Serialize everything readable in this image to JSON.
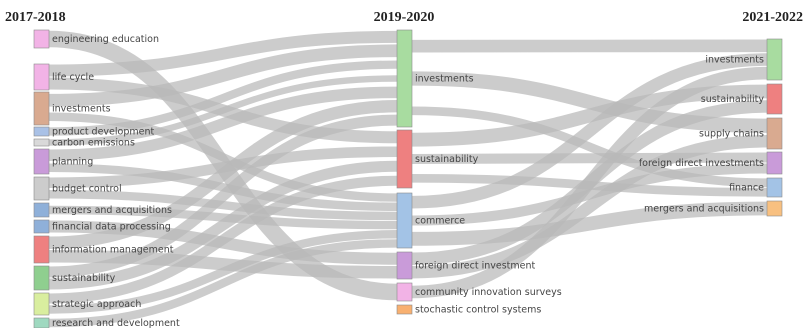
{
  "columns": [
    {
      "title": "2017-2018",
      "nodes": [
        {
          "label": "engineering education",
          "color": "#f2b3e6"
        },
        {
          "label": "life cycle",
          "color": "#f2b3e6"
        },
        {
          "label": "investments",
          "color": "#d9aa90"
        },
        {
          "label": "product development",
          "color": "#a9c1e6"
        },
        {
          "label": "carbon emissions",
          "color": "#d9d9d9"
        },
        {
          "label": "planning",
          "color": "#c99bd9"
        },
        {
          "label": "budget control",
          "color": "#cccccc"
        },
        {
          "label": "mergers and acquisitions",
          "color": "#8fb0d9"
        },
        {
          "label": "financial data processing",
          "color": "#8fb0d9"
        },
        {
          "label": "information management",
          "color": "#ee8080"
        },
        {
          "label": "sustainability",
          "color": "#8fcf8f"
        },
        {
          "label": "strategic approach",
          "color": "#d9ee9f"
        },
        {
          "label": "research and development",
          "color": "#9fd9c0"
        }
      ]
    },
    {
      "title": "2019-2020",
      "nodes": [
        {
          "label": "investments",
          "color": "#a8dca0"
        },
        {
          "label": "sustainability",
          "color": "#ee8080"
        },
        {
          "label": "commerce",
          "color": "#a3c3e6"
        },
        {
          "label": "foreign direct investment",
          "color": "#c99bd9"
        },
        {
          "label": "community innovation surveys",
          "color": "#f2b3e6"
        },
        {
          "label": "stochastic control systems",
          "color": "#f8b070"
        }
      ]
    },
    {
      "title": "2021-2022",
      "nodes": [
        {
          "label": "investments",
          "color": "#a8dca0"
        },
        {
          "label": "sustainability",
          "color": "#ee8080"
        },
        {
          "label": "supply chains",
          "color": "#d9aa90"
        },
        {
          "label": "foreign direct investments",
          "color": "#c99bd9"
        },
        {
          "label": "finance",
          "color": "#a3c3e6"
        },
        {
          "label": "mergers and acquisitions",
          "color": "#f8c080"
        }
      ]
    }
  ],
  "links": [
    {
      "from": [
        0,
        0
      ],
      "to": [
        1,
        4
      ]
    },
    {
      "from": [
        0,
        1
      ],
      "to": [
        1,
        0
      ]
    },
    {
      "from": [
        0,
        1
      ],
      "to": [
        1,
        1
      ]
    },
    {
      "from": [
        0,
        2
      ],
      "to": [
        1,
        0
      ]
    },
    {
      "from": [
        0,
        2
      ],
      "to": [
        1,
        2
      ]
    },
    {
      "from": [
        0,
        3
      ],
      "to": [
        1,
        0
      ]
    },
    {
      "from": [
        0,
        4
      ],
      "to": [
        1,
        0
      ]
    },
    {
      "from": [
        0,
        5
      ],
      "to": [
        1,
        0
      ]
    },
    {
      "from": [
        0,
        5
      ],
      "to": [
        1,
        2
      ]
    },
    {
      "from": [
        0,
        6
      ],
      "to": [
        1,
        1
      ]
    },
    {
      "from": [
        0,
        6
      ],
      "to": [
        1,
        2
      ]
    },
    {
      "from": [
        0,
        7
      ],
      "to": [
        1,
        2
      ]
    },
    {
      "from": [
        0,
        8
      ],
      "to": [
        1,
        3
      ]
    },
    {
      "from": [
        0,
        9
      ],
      "to": [
        1,
        0
      ]
    },
    {
      "from": [
        0,
        9
      ],
      "to": [
        1,
        3
      ]
    },
    {
      "from": [
        0,
        10
      ],
      "to": [
        1,
        0
      ]
    },
    {
      "from": [
        0,
        10
      ],
      "to": [
        1,
        1
      ]
    },
    {
      "from": [
        0,
        11
      ],
      "to": [
        1,
        1
      ]
    },
    {
      "from": [
        0,
        11
      ],
      "to": [
        1,
        2
      ]
    },
    {
      "from": [
        0,
        12
      ],
      "to": [
        1,
        2
      ]
    },
    {
      "from": [
        1,
        0
      ],
      "to": [
        2,
        0
      ]
    },
    {
      "from": [
        1,
        0
      ],
      "to": [
        2,
        2
      ]
    },
    {
      "from": [
        1,
        0
      ],
      "to": [
        2,
        4
      ]
    },
    {
      "from": [
        1,
        1
      ],
      "to": [
        2,
        1
      ]
    },
    {
      "from": [
        1,
        1
      ],
      "to": [
        2,
        3
      ]
    },
    {
      "from": [
        1,
        1
      ],
      "to": [
        2,
        4
      ]
    },
    {
      "from": [
        1,
        2
      ],
      "to": [
        2,
        0
      ]
    },
    {
      "from": [
        1,
        2
      ],
      "to": [
        2,
        3
      ]
    },
    {
      "from": [
        1,
        2
      ],
      "to": [
        2,
        5
      ]
    },
    {
      "from": [
        1,
        3
      ],
      "to": [
        2,
        1
      ]
    },
    {
      "from": [
        1,
        3
      ],
      "to": [
        2,
        2
      ]
    },
    {
      "from": [
        1,
        4
      ],
      "to": [
        2,
        0
      ]
    }
  ]
}
